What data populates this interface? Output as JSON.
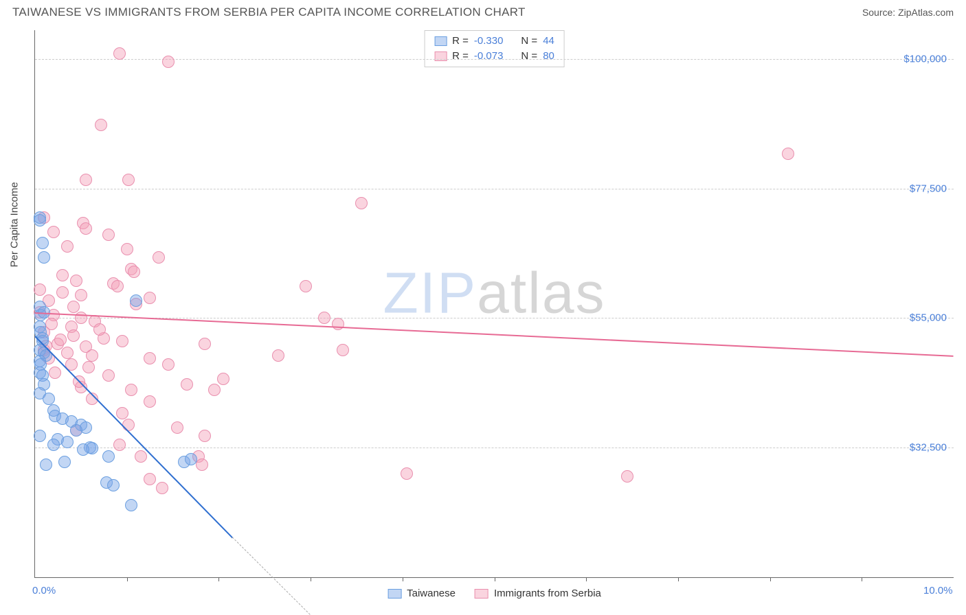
{
  "header": {
    "title": "TAIWANESE VS IMMIGRANTS FROM SERBIA PER CAPITA INCOME CORRELATION CHART",
    "source_label": "Source: ",
    "source_name": "ZipAtlas.com"
  },
  "watermark": {
    "part1": "ZIP",
    "part2": "atlas"
  },
  "axes": {
    "y_title": "Per Capita Income",
    "xlim": [
      0,
      10
    ],
    "ylim": [
      10000,
      105000
    ],
    "x_ticks_major": [
      0,
      10
    ],
    "x_tick_labels": [
      "0.0%",
      "10.0%"
    ],
    "x_ticks_minor": [
      1,
      2,
      3,
      4,
      5,
      6,
      7,
      8,
      9
    ],
    "y_ticks": [
      32500,
      55000,
      77500,
      100000
    ],
    "y_tick_labels": [
      "$32,500",
      "$55,000",
      "$77,500",
      "$100,000"
    ],
    "grid_color": "#cccccc",
    "axis_color": "#666666",
    "tick_label_color": "#4a7fd8",
    "axis_title_color": "#444444",
    "tick_label_fontsize": 15
  },
  "series": {
    "taiwanese": {
      "label": "Taiwanese",
      "fill": "rgba(120,165,230,0.45)",
      "stroke": "#6b9fe0",
      "marker_radius": 9,
      "trend_color": "#2f6fd0",
      "trend": {
        "x1": 0.0,
        "y1": 52000,
        "x2": 2.15,
        "y2": 17000
      },
      "trend_dash": {
        "x1": 2.15,
        "y1": 17000,
        "x2": 3.0,
        "y2": 3500
      },
      "R": "-0.330",
      "N": "44",
      "points": [
        [
          0.05,
          72500
        ],
        [
          0.05,
          72000
        ],
        [
          0.08,
          68000
        ],
        [
          0.1,
          65500
        ],
        [
          0.05,
          57000
        ],
        [
          0.06,
          55500
        ],
        [
          0.05,
          53500
        ],
        [
          0.06,
          52500
        ],
        [
          0.08,
          51500
        ],
        [
          0.08,
          51000
        ],
        [
          0.05,
          49500
        ],
        [
          0.1,
          49000
        ],
        [
          0.12,
          48500
        ],
        [
          0.05,
          47500
        ],
        [
          0.06,
          47000
        ],
        [
          0.05,
          45500
        ],
        [
          0.08,
          45000
        ],
        [
          0.1,
          43500
        ],
        [
          0.05,
          42000
        ],
        [
          0.15,
          41000
        ],
        [
          0.2,
          39000
        ],
        [
          0.22,
          38000
        ],
        [
          0.3,
          37500
        ],
        [
          0.4,
          37000
        ],
        [
          0.5,
          36500
        ],
        [
          0.55,
          36000
        ],
        [
          0.45,
          35500
        ],
        [
          0.05,
          34500
        ],
        [
          0.25,
          34000
        ],
        [
          0.35,
          33500
        ],
        [
          0.2,
          33000
        ],
        [
          0.6,
          32500
        ],
        [
          0.62,
          32400
        ],
        [
          0.52,
          32200
        ],
        [
          0.8,
          31000
        ],
        [
          0.32,
          30000
        ],
        [
          0.12,
          29500
        ],
        [
          1.62,
          30000
        ],
        [
          1.7,
          30500
        ],
        [
          0.78,
          26500
        ],
        [
          0.85,
          26000
        ],
        [
          1.05,
          22500
        ],
        [
          0.1,
          56000
        ],
        [
          1.1,
          58000
        ]
      ]
    },
    "serbia": {
      "label": "Immigrants from Serbia",
      "fill": "rgba(245,160,185,0.45)",
      "stroke": "#e98fae",
      "marker_radius": 9,
      "trend_color": "#e76a94",
      "trend": {
        "x1": 0.0,
        "y1": 56000,
        "x2": 10.0,
        "y2": 48500
      },
      "R": "-0.073",
      "N": "80",
      "points": [
        [
          0.92,
          101000
        ],
        [
          1.45,
          99500
        ],
        [
          0.72,
          88500
        ],
        [
          8.2,
          83500
        ],
        [
          0.55,
          79000
        ],
        [
          1.02,
          79000
        ],
        [
          3.55,
          75000
        ],
        [
          0.1,
          72500
        ],
        [
          0.52,
          71500
        ],
        [
          0.55,
          70500
        ],
        [
          0.2,
          70000
        ],
        [
          0.8,
          69500
        ],
        [
          0.35,
          67500
        ],
        [
          1.0,
          67000
        ],
        [
          1.35,
          65500
        ],
        [
          1.05,
          63500
        ],
        [
          1.08,
          63000
        ],
        [
          0.45,
          61500
        ],
        [
          0.85,
          61000
        ],
        [
          0.9,
          60500
        ],
        [
          0.05,
          60000
        ],
        [
          0.3,
          59500
        ],
        [
          0.5,
          59000
        ],
        [
          2.95,
          60500
        ],
        [
          1.25,
          58500
        ],
        [
          0.15,
          58000
        ],
        [
          1.1,
          57500
        ],
        [
          0.42,
          57000
        ],
        [
          0.05,
          56000
        ],
        [
          0.2,
          55500
        ],
        [
          0.5,
          55000
        ],
        [
          0.65,
          54500
        ],
        [
          0.18,
          54000
        ],
        [
          0.4,
          53500
        ],
        [
          3.15,
          55000
        ],
        [
          3.3,
          54000
        ],
        [
          0.1,
          52500
        ],
        [
          0.42,
          52000
        ],
        [
          0.75,
          51500
        ],
        [
          0.95,
          51000
        ],
        [
          0.25,
          50500
        ],
        [
          0.55,
          50000
        ],
        [
          1.85,
          50500
        ],
        [
          0.1,
          49500
        ],
        [
          0.35,
          49000
        ],
        [
          0.62,
          48500
        ],
        [
          0.15,
          48000
        ],
        [
          1.25,
          48000
        ],
        [
          3.35,
          49500
        ],
        [
          0.4,
          47000
        ],
        [
          0.58,
          46500
        ],
        [
          1.45,
          47000
        ],
        [
          2.65,
          48500
        ],
        [
          0.22,
          45500
        ],
        [
          0.8,
          45000
        ],
        [
          1.65,
          43500
        ],
        [
          0.5,
          43000
        ],
        [
          1.05,
          42500
        ],
        [
          1.95,
          42500
        ],
        [
          0.62,
          41000
        ],
        [
          1.25,
          40500
        ],
        [
          0.95,
          38500
        ],
        [
          2.05,
          44500
        ],
        [
          1.55,
          36000
        ],
        [
          0.45,
          35500
        ],
        [
          1.85,
          34500
        ],
        [
          0.92,
          33000
        ],
        [
          1.02,
          36500
        ],
        [
          1.15,
          31000
        ],
        [
          1.78,
          31000
        ],
        [
          1.82,
          29500
        ],
        [
          1.25,
          27000
        ],
        [
          1.38,
          25500
        ],
        [
          4.05,
          28000
        ],
        [
          6.45,
          27500
        ],
        [
          0.3,
          62500
        ],
        [
          0.7,
          53000
        ],
        [
          0.28,
          51200
        ],
        [
          0.12,
          50200
        ],
        [
          0.48,
          44000
        ]
      ]
    }
  },
  "stats_box": {
    "rows": [
      {
        "swatch_fill": "rgba(120,165,230,0.45)",
        "swatch_border": "#6b9fe0",
        "r_label": "R =",
        "r_val": "-0.330",
        "n_label": "N =",
        "n_val": "44"
      },
      {
        "swatch_fill": "rgba(245,160,185,0.45)",
        "swatch_border": "#e98fae",
        "r_label": "R =",
        "r_val": "-0.073",
        "n_label": "N =",
        "n_val": "80"
      }
    ]
  },
  "legend": {
    "items": [
      {
        "swatch_fill": "rgba(120,165,230,0.45)",
        "swatch_border": "#6b9fe0",
        "label": "Taiwanese"
      },
      {
        "swatch_fill": "rgba(245,160,185,0.45)",
        "swatch_border": "#e98fae",
        "label": "Immigrants from Serbia"
      }
    ]
  }
}
